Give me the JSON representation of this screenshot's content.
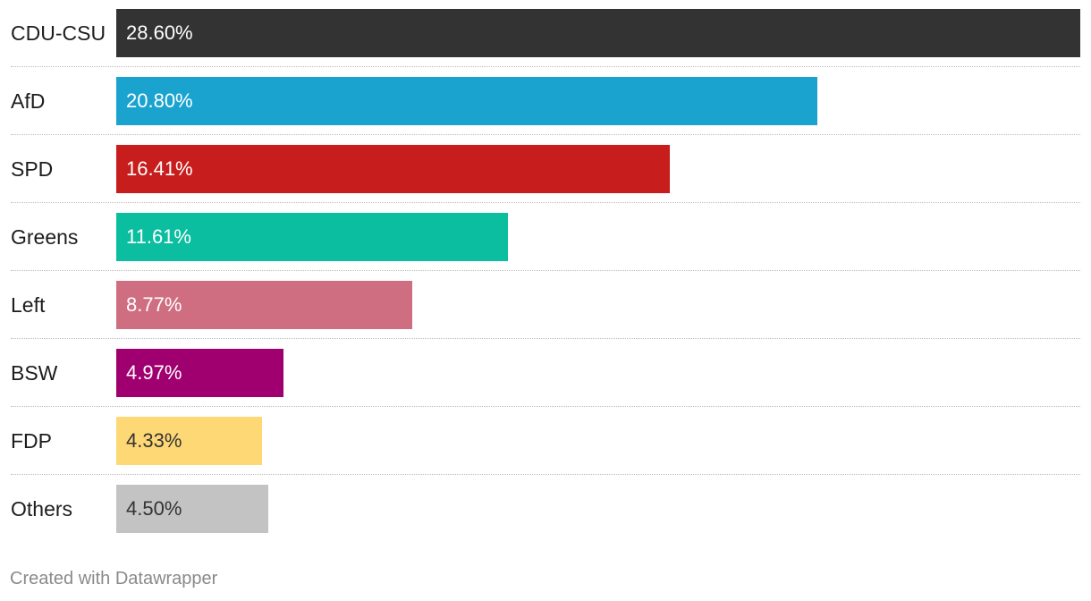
{
  "chart_data": {
    "type": "bar",
    "orientation": "horizontal",
    "categories": [
      "CDU-CSU",
      "AfD",
      "SPD",
      "Greens",
      "Left",
      "BSW",
      "FDP",
      "Others"
    ],
    "values": [
      28.6,
      20.8,
      16.41,
      11.61,
      8.77,
      4.97,
      4.33,
      4.5
    ],
    "value_labels": [
      "28.60%",
      "20.80%",
      "16.41%",
      "11.61%",
      "8.77%",
      "4.97%",
      "4.33%",
      "4.50%"
    ],
    "colors": [
      "#333333",
      "#1ba3d0",
      "#c71e1d",
      "#0bbe9f",
      "#d06e81",
      "#a0006f",
      "#fdd875",
      "#c3c3c3"
    ],
    "label_colors": [
      "#ffffff",
      "#ffffff",
      "#ffffff",
      "#ffffff",
      "#ffffff",
      "#ffffff",
      "#333333",
      "#333333"
    ],
    "xlim": [
      0,
      28.6
    ],
    "grid": false,
    "title": "",
    "xlabel": "",
    "ylabel": ""
  },
  "footer": {
    "credit": "Created with Datawrapper"
  }
}
